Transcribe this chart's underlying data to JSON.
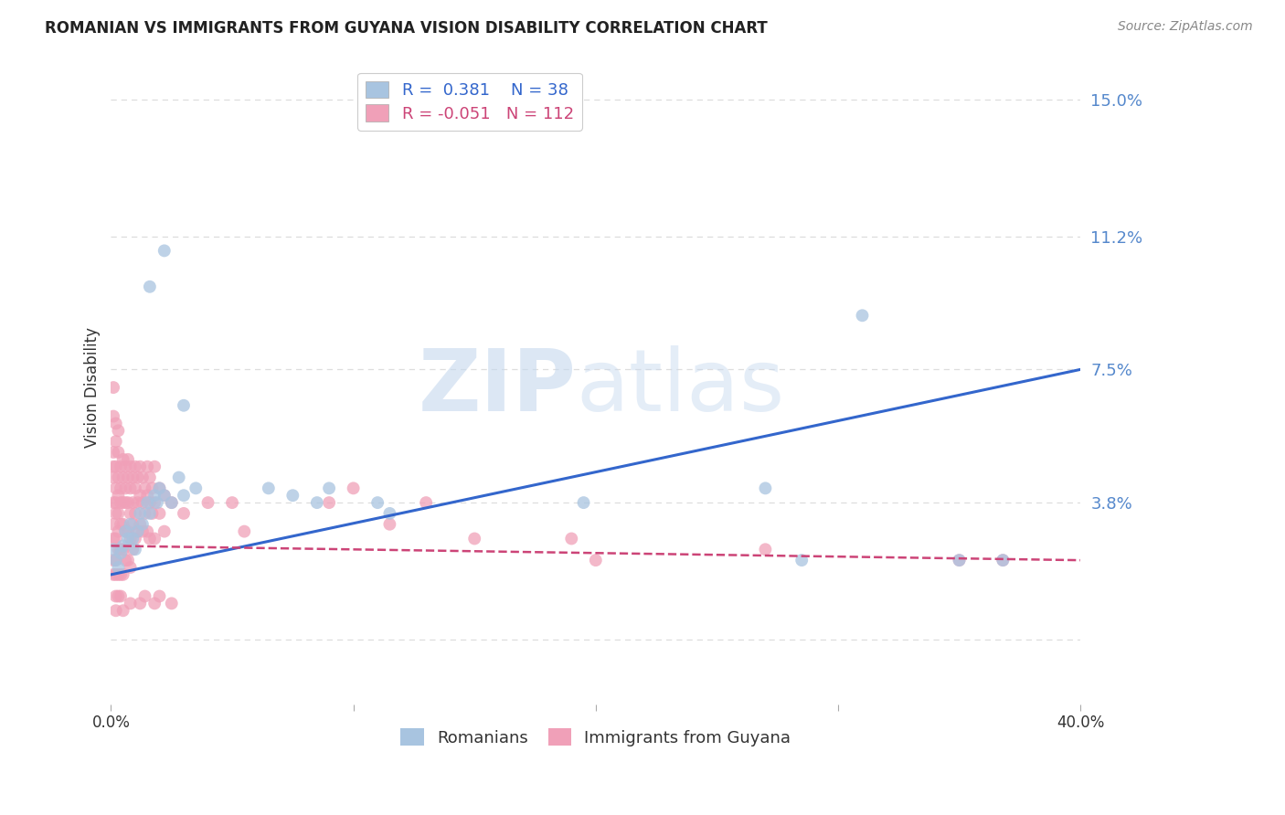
{
  "title": "ROMANIAN VS IMMIGRANTS FROM GUYANA VISION DISABILITY CORRELATION CHART",
  "source": "Source: ZipAtlas.com",
  "ylabel": "Vision Disability",
  "blue_label": "Romanians",
  "pink_label": "Immigrants from Guyana",
  "blue_R": 0.381,
  "blue_N": 38,
  "pink_R": -0.051,
  "pink_N": 112,
  "blue_color": "#A8C4E0",
  "pink_color": "#F0A0B8",
  "blue_line_color": "#3366CC",
  "pink_line_color": "#CC4477",
  "ytick_vals": [
    0.0,
    0.038,
    0.075,
    0.112,
    0.15
  ],
  "ytick_labels": [
    "",
    "3.8%",
    "7.5%",
    "11.2%",
    "15.0%"
  ],
  "xlim": [
    0.0,
    0.4
  ],
  "ylim": [
    -0.018,
    0.158
  ],
  "blue_line_x": [
    0.0,
    0.4
  ],
  "blue_line_y": [
    0.018,
    0.075
  ],
  "pink_line_x": [
    0.0,
    0.4
  ],
  "pink_line_y": [
    0.026,
    0.022
  ],
  "blue_scatter": [
    [
      0.001,
      0.025
    ],
    [
      0.002,
      0.022
    ],
    [
      0.003,
      0.02
    ],
    [
      0.004,
      0.024
    ],
    [
      0.005,
      0.026
    ],
    [
      0.006,
      0.03
    ],
    [
      0.007,
      0.028
    ],
    [
      0.008,
      0.032
    ],
    [
      0.009,
      0.028
    ],
    [
      0.01,
      0.025
    ],
    [
      0.011,
      0.03
    ],
    [
      0.012,
      0.035
    ],
    [
      0.013,
      0.032
    ],
    [
      0.015,
      0.038
    ],
    [
      0.016,
      0.035
    ],
    [
      0.018,
      0.04
    ],
    [
      0.019,
      0.038
    ],
    [
      0.02,
      0.042
    ],
    [
      0.022,
      0.04
    ],
    [
      0.025,
      0.038
    ],
    [
      0.028,
      0.045
    ],
    [
      0.03,
      0.04
    ],
    [
      0.035,
      0.042
    ],
    [
      0.016,
      0.098
    ],
    [
      0.022,
      0.108
    ],
    [
      0.03,
      0.065
    ],
    [
      0.065,
      0.042
    ],
    [
      0.075,
      0.04
    ],
    [
      0.085,
      0.038
    ],
    [
      0.09,
      0.042
    ],
    [
      0.11,
      0.038
    ],
    [
      0.115,
      0.035
    ],
    [
      0.195,
      0.038
    ],
    [
      0.27,
      0.042
    ],
    [
      0.31,
      0.09
    ],
    [
      0.35,
      0.022
    ],
    [
      0.368,
      0.022
    ],
    [
      0.285,
      0.022
    ]
  ],
  "pink_scatter": [
    [
      0.001,
      0.052
    ],
    [
      0.001,
      0.048
    ],
    [
      0.001,
      0.045
    ],
    [
      0.001,
      0.038
    ],
    [
      0.001,
      0.032
    ],
    [
      0.001,
      0.028
    ],
    [
      0.001,
      0.022
    ],
    [
      0.001,
      0.018
    ],
    [
      0.002,
      0.055
    ],
    [
      0.002,
      0.048
    ],
    [
      0.002,
      0.042
    ],
    [
      0.002,
      0.038
    ],
    [
      0.002,
      0.035
    ],
    [
      0.002,
      0.028
    ],
    [
      0.002,
      0.022
    ],
    [
      0.002,
      0.018
    ],
    [
      0.002,
      0.012
    ],
    [
      0.003,
      0.052
    ],
    [
      0.003,
      0.045
    ],
    [
      0.003,
      0.04
    ],
    [
      0.003,
      0.035
    ],
    [
      0.003,
      0.03
    ],
    [
      0.003,
      0.025
    ],
    [
      0.003,
      0.018
    ],
    [
      0.003,
      0.012
    ],
    [
      0.004,
      0.048
    ],
    [
      0.004,
      0.042
    ],
    [
      0.004,
      0.038
    ],
    [
      0.004,
      0.032
    ],
    [
      0.004,
      0.025
    ],
    [
      0.004,
      0.018
    ],
    [
      0.004,
      0.012
    ],
    [
      0.005,
      0.05
    ],
    [
      0.005,
      0.045
    ],
    [
      0.005,
      0.038
    ],
    [
      0.005,
      0.032
    ],
    [
      0.005,
      0.025
    ],
    [
      0.005,
      0.018
    ],
    [
      0.006,
      0.048
    ],
    [
      0.006,
      0.042
    ],
    [
      0.006,
      0.038
    ],
    [
      0.006,
      0.03
    ],
    [
      0.006,
      0.022
    ],
    [
      0.007,
      0.05
    ],
    [
      0.007,
      0.045
    ],
    [
      0.007,
      0.038
    ],
    [
      0.007,
      0.03
    ],
    [
      0.007,
      0.022
    ],
    [
      0.008,
      0.048
    ],
    [
      0.008,
      0.042
    ],
    [
      0.008,
      0.035
    ],
    [
      0.008,
      0.028
    ],
    [
      0.008,
      0.02
    ],
    [
      0.009,
      0.045
    ],
    [
      0.009,
      0.038
    ],
    [
      0.009,
      0.032
    ],
    [
      0.009,
      0.025
    ],
    [
      0.01,
      0.048
    ],
    [
      0.01,
      0.042
    ],
    [
      0.01,
      0.035
    ],
    [
      0.01,
      0.028
    ],
    [
      0.011,
      0.045
    ],
    [
      0.011,
      0.038
    ],
    [
      0.011,
      0.03
    ],
    [
      0.012,
      0.048
    ],
    [
      0.012,
      0.04
    ],
    [
      0.012,
      0.032
    ],
    [
      0.013,
      0.045
    ],
    [
      0.013,
      0.038
    ],
    [
      0.013,
      0.03
    ],
    [
      0.014,
      0.042
    ],
    [
      0.014,
      0.035
    ],
    [
      0.015,
      0.048
    ],
    [
      0.015,
      0.04
    ],
    [
      0.015,
      0.03
    ],
    [
      0.016,
      0.045
    ],
    [
      0.016,
      0.038
    ],
    [
      0.016,
      0.028
    ],
    [
      0.017,
      0.042
    ],
    [
      0.017,
      0.035
    ],
    [
      0.018,
      0.048
    ],
    [
      0.018,
      0.038
    ],
    [
      0.018,
      0.028
    ],
    [
      0.02,
      0.042
    ],
    [
      0.02,
      0.035
    ],
    [
      0.022,
      0.04
    ],
    [
      0.022,
      0.03
    ],
    [
      0.001,
      0.062
    ],
    [
      0.002,
      0.06
    ],
    [
      0.003,
      0.058
    ],
    [
      0.025,
      0.038
    ],
    [
      0.03,
      0.035
    ],
    [
      0.04,
      0.038
    ],
    [
      0.05,
      0.038
    ],
    [
      0.055,
      0.03
    ],
    [
      0.09,
      0.038
    ],
    [
      0.1,
      0.042
    ],
    [
      0.115,
      0.032
    ],
    [
      0.13,
      0.038
    ],
    [
      0.15,
      0.028
    ],
    [
      0.19,
      0.028
    ],
    [
      0.2,
      0.022
    ],
    [
      0.27,
      0.025
    ],
    [
      0.35,
      0.022
    ],
    [
      0.368,
      0.022
    ],
    [
      0.002,
      0.008
    ],
    [
      0.005,
      0.008
    ],
    [
      0.008,
      0.01
    ],
    [
      0.012,
      0.01
    ],
    [
      0.014,
      0.012
    ],
    [
      0.018,
      0.01
    ],
    [
      0.02,
      0.012
    ],
    [
      0.025,
      0.01
    ],
    [
      0.001,
      0.07
    ]
  ],
  "watermark_zip": "ZIP",
  "watermark_atlas": "atlas",
  "grid_color": "#DDDDDD",
  "background_color": "#FFFFFF"
}
